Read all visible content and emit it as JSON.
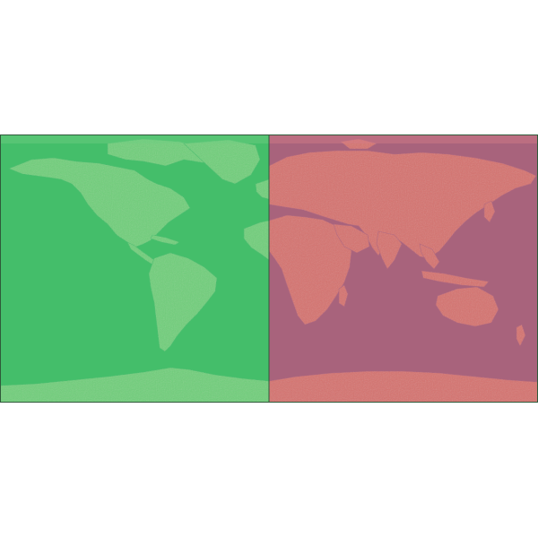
{
  "map": {
    "projection": "equirectangular",
    "lon_range": [
      -180,
      180
    ],
    "lat_range": [
      -90,
      90
    ],
    "hemispheres": [
      {
        "id": "western",
        "lon_range": [
          -180,
          0
        ],
        "overlay_color": "#3fbf6a",
        "ocean_color": "#44be6a",
        "land_color": "#6fcf7a"
      },
      {
        "id": "eastern",
        "lon_range": [
          0,
          180
        ],
        "overlay_color": "#b15f7a",
        "ocean_color": "#a8637c",
        "land_color": "#d5726e"
      }
    ],
    "polar_band_color_west": "#6fcf80",
    "polar_band_color_east": "#d57d87",
    "border_color": "#2f5a3a"
  }
}
